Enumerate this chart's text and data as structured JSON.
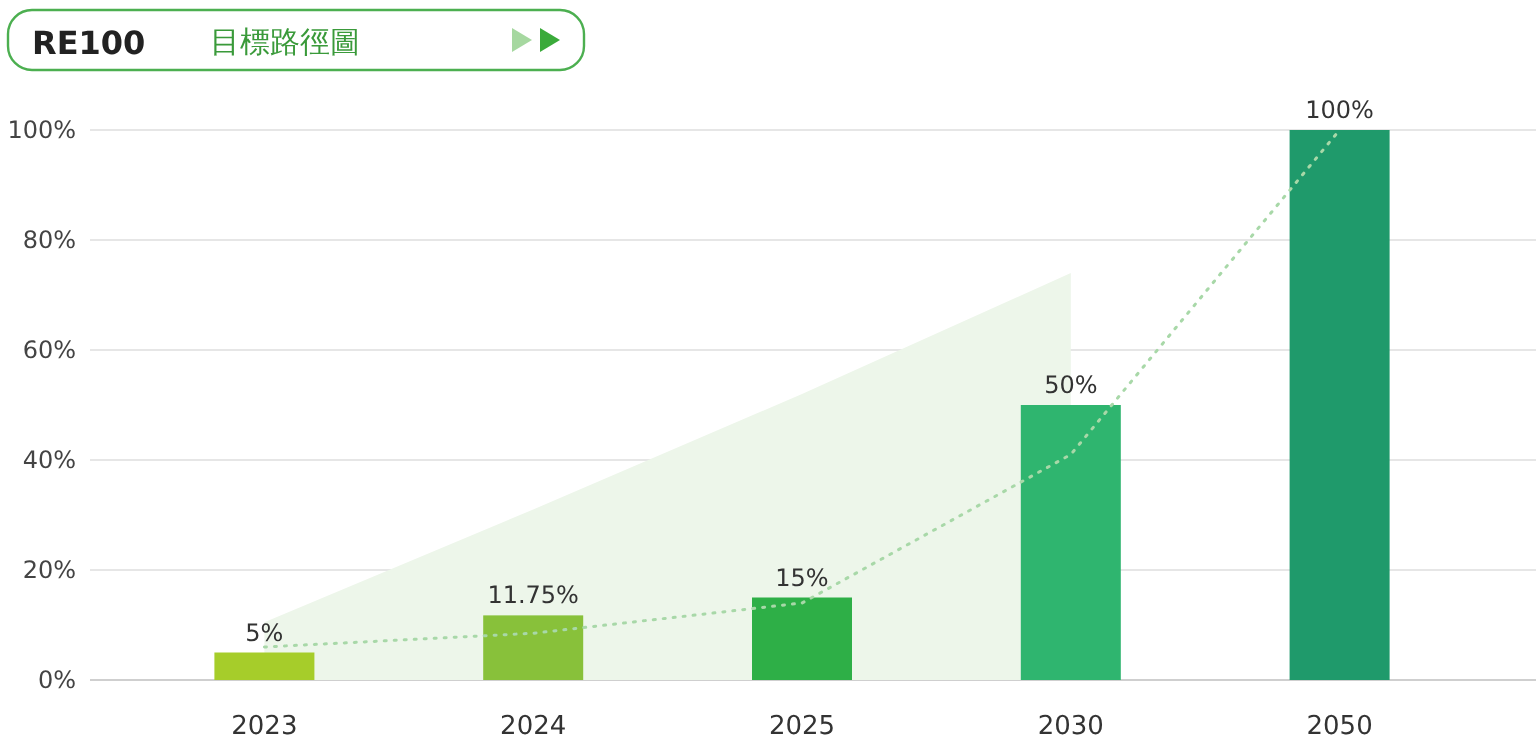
{
  "chart_data": {
    "type": "bar",
    "title": "RE100",
    "subtitle": "目標路徑圖",
    "categories": [
      "2023",
      "2024",
      "2025",
      "2030",
      "2050"
    ],
    "series": [
      {
        "type": "area",
        "values": [
          10.5,
          31,
          52,
          74,
          null
        ],
        "color": "#edf6ea"
      },
      {
        "values": [
          5,
          11.75,
          15,
          50,
          100
        ],
        "colors": [
          "#a6cd2a",
          "#88c13a",
          "#2eaf47",
          "#2fb56f",
          "#1f9a6b"
        ],
        "value_labels": [
          "5%",
          "11.75%",
          "15%",
          "50%",
          "100%"
        ]
      },
      {
        "type": "line",
        "values": [
          6,
          8.5,
          14,
          41,
          100
        ],
        "color": "#a8d8a8",
        "line_style": "dotted",
        "marker": "none"
      }
    ],
    "ylim": [
      0,
      100
    ],
    "yticks": [
      {
        "value": 0,
        "label": "0%"
      },
      {
        "value": 20,
        "label": "20%"
      },
      {
        "value": 40,
        "label": "40%"
      },
      {
        "value": 60,
        "label": "60%"
      },
      {
        "value": 80,
        "label": "80%"
      },
      {
        "value": 100,
        "label": "100%"
      }
    ],
    "grid": "y"
  }
}
